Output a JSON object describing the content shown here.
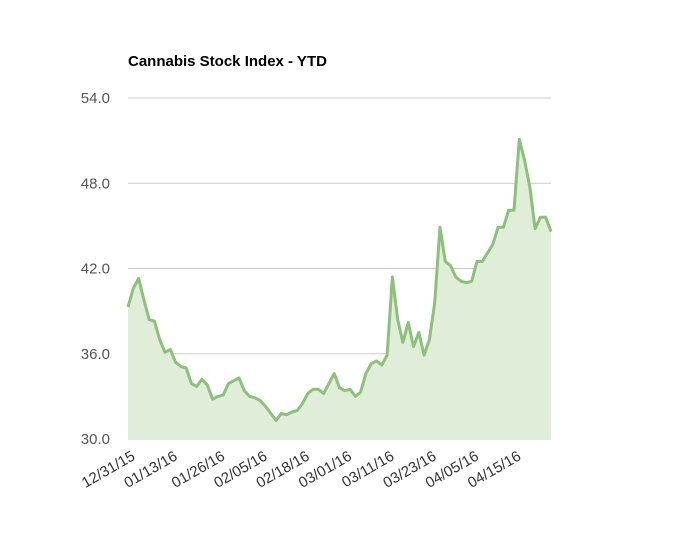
{
  "chart_data": {
    "type": "area",
    "title": "Cannabis Stock Index - YTD",
    "xlabel": "",
    "ylabel": "",
    "ylim": [
      30,
      54
    ],
    "yticks": [
      "30.0",
      "36.0",
      "42.0",
      "48.0",
      "54.0"
    ],
    "ytick_values": [
      30,
      36,
      42,
      48,
      54
    ],
    "grid": true,
    "legend": "none",
    "line_color": "#8bc17a",
    "fill_color": "#e0edd9",
    "xtick_labels": [
      "12/31/15",
      "01/13/16",
      "01/26/16",
      "02/05/16",
      "02/18/16",
      "03/01/16",
      "03/11/16",
      "03/23/16",
      "04/05/16",
      "04/15/16"
    ],
    "xtick_indices": [
      0,
      8,
      17,
      25,
      33,
      41,
      49,
      57,
      65,
      73
    ],
    "values": [
      39.3,
      40.6,
      41.3,
      39.8,
      38.4,
      38.3,
      37.0,
      36.1,
      36.3,
      35.4,
      35.1,
      35.0,
      33.9,
      33.7,
      34.2,
      33.8,
      32.8,
      33.0,
      33.1,
      33.9,
      34.1,
      34.3,
      33.4,
      33.0,
      32.9,
      32.7,
      32.3,
      31.8,
      31.3,
      31.8,
      31.7,
      31.9,
      32.0,
      32.5,
      33.2,
      33.5,
      33.5,
      33.2,
      33.9,
      34.6,
      33.6,
      33.4,
      33.5,
      33.0,
      33.3,
      34.6,
      35.3,
      35.5,
      35.2,
      35.9,
      41.4,
      38.4,
      36.8,
      38.2,
      36.5,
      37.5,
      35.9,
      37.0,
      39.6,
      44.9,
      42.5,
      42.2,
      41.4,
      41.1,
      41.0,
      41.1,
      42.5,
      42.5,
      43.1,
      43.7,
      44.9,
      44.9,
      46.1,
      46.1,
      51.1,
      49.6,
      47.7,
      44.8,
      45.6,
      45.6,
      44.6
    ]
  }
}
